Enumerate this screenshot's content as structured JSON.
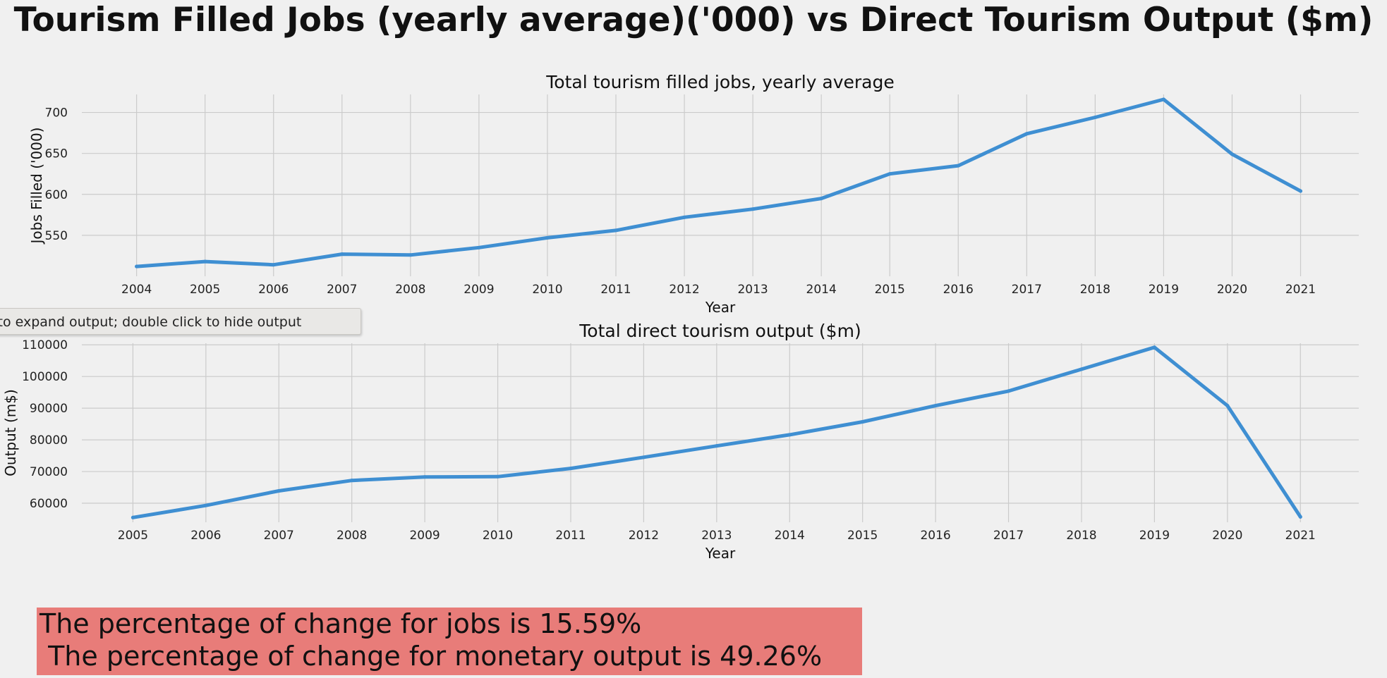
{
  "figure": {
    "title": "Tourism Filled Jobs (yearly average)('000) vs Direct Tourism Output ($m)"
  },
  "tooltip": {
    "text": "ck to expand output; double click to hide output"
  },
  "summary": {
    "line1": "The percentage of change for jobs is 15.59%",
    "line2": " The percentage of change for monetary output is 49.26%"
  },
  "colors": {
    "background": "#f0f0f0",
    "series": "#3f8fd2",
    "summary_box": "#e87c79"
  },
  "chart_data": [
    {
      "type": "line",
      "title": "Total tourism filled jobs, yearly average",
      "xlabel": "Year",
      "ylabel": "Jobs Filled ('000)",
      "x": [
        2004,
        2005,
        2006,
        2007,
        2008,
        2009,
        2010,
        2011,
        2012,
        2013,
        2014,
        2015,
        2016,
        2017,
        2018,
        2019,
        2020,
        2021
      ],
      "y": [
        512,
        518,
        514,
        527,
        526,
        535,
        547,
        556,
        572,
        582,
        595,
        625,
        635,
        674,
        694,
        716,
        649,
        604
      ],
      "yticks": [
        550,
        600,
        650,
        700
      ],
      "ylim": [
        500,
        722
      ],
      "xlim": [
        2003.2,
        2021.85
      ],
      "grid": true
    },
    {
      "type": "line",
      "title": "Total direct tourism output ($m)",
      "xlabel": "Year",
      "ylabel": "Output (m$)",
      "x": [
        2005,
        2006,
        2007,
        2008,
        2009,
        2010,
        2011,
        2012,
        2013,
        2014,
        2015,
        2016,
        2017,
        2018,
        2019,
        2020,
        2021
      ],
      "y": [
        55500,
        59300,
        63900,
        67200,
        68300,
        68400,
        71000,
        74500,
        78100,
        81600,
        85700,
        90800,
        95400,
        102300,
        109200,
        90800,
        55700
      ],
      "yticks": [
        60000,
        70000,
        80000,
        90000,
        100000,
        110000
      ],
      "ylim": [
        54000,
        110500
      ],
      "xlim": [
        2004.3,
        2021.8
      ],
      "grid": true
    }
  ]
}
